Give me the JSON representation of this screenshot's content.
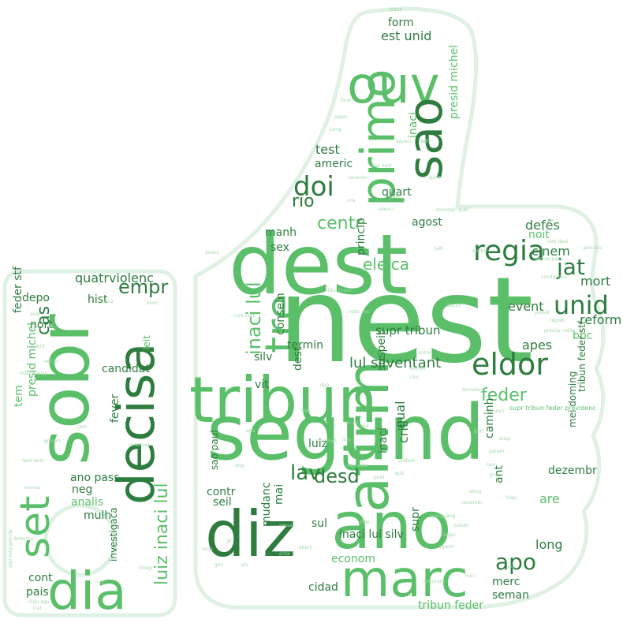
{
  "palette": {
    "outline": "#dff1e3",
    "dark": "#2e7d3f",
    "mid": "#5bbf6a",
    "light": "#a3d7a9",
    "pale": "#cfe8d3"
  },
  "words": [
    {
      "text": "nest",
      "tone": "mid"
    },
    {
      "text": "segund",
      "tone": "mid"
    },
    {
      "text": "dest",
      "tone": "mid"
    },
    {
      "text": "ano",
      "tone": "mid"
    },
    {
      "text": "diz",
      "tone": "dark"
    },
    {
      "text": "tribun",
      "tone": "mid"
    },
    {
      "text": "sobr",
      "tone": "mid"
    },
    {
      "text": "decisa",
      "tone": "dark"
    },
    {
      "text": "afirm",
      "tone": "mid"
    },
    {
      "text": "marc",
      "tone": "mid"
    },
    {
      "text": "primo",
      "tone": "mid"
    },
    {
      "text": "ouv",
      "tone": "mid"
    },
    {
      "text": "sao",
      "tone": "dark"
    },
    {
      "text": "tre",
      "tone": "mid"
    },
    {
      "text": "dia",
      "tone": "mid"
    },
    {
      "text": "set",
      "tone": "mid"
    },
    {
      "text": "eldor",
      "tone": "dark"
    },
    {
      "text": "regia",
      "tone": "dark"
    },
    {
      "text": "doi",
      "tone": "dark"
    },
    {
      "text": "unid",
      "tone": "dark"
    },
    {
      "text": "jat",
      "tone": "dark"
    },
    {
      "text": "lav",
      "tone": "dark"
    },
    {
      "text": "desd",
      "tone": "dark"
    },
    {
      "text": "apo",
      "tone": "dark"
    },
    {
      "text": "empr",
      "tone": "dark"
    },
    {
      "text": "inaci lul",
      "tone": "mid"
    },
    {
      "text": "luiz inaci lul",
      "tone": "mid"
    },
    {
      "text": "centr",
      "tone": "mid"
    },
    {
      "text": "rio",
      "tone": "dark"
    },
    {
      "text": "feder",
      "tone": "mid"
    },
    {
      "text": "cas",
      "tone": "dark"
    },
    {
      "text": "eleica",
      "tone": "mid"
    },
    {
      "text": "lul silventant",
      "tone": "dark"
    },
    {
      "text": "quatrviolenc",
      "tone": "dark"
    },
    {
      "text": "est unid",
      "tone": "dark"
    },
    {
      "text": "form",
      "tone": "dark"
    },
    {
      "text": "test",
      "tone": "dark"
    },
    {
      "text": "americ",
      "tone": "dark"
    },
    {
      "text": "quart",
      "tone": "dark"
    },
    {
      "text": "agost",
      "tone": "dark"
    },
    {
      "text": "defês",
      "tone": "dark"
    },
    {
      "text": "noit",
      "tone": "mid"
    },
    {
      "text": "cinem",
      "tone": "dark"
    },
    {
      "text": "mort",
      "tone": "dark"
    },
    {
      "text": "reform",
      "tone": "dark"
    },
    {
      "text": "event",
      "tone": "dark"
    },
    {
      "text": "apes",
      "tone": "dark"
    },
    {
      "text": "bbc",
      "tone": "mid"
    },
    {
      "text": "supr tribun",
      "tone": "dark"
    },
    {
      "text": "termin",
      "tone": "dark"
    },
    {
      "text": "silv",
      "tone": "dark"
    },
    {
      "text": "vit",
      "tone": "dark"
    },
    {
      "text": "dest",
      "tone": "dark"
    },
    {
      "text": "conseln",
      "tone": "dark"
    },
    {
      "text": "suspeit",
      "tone": "dark"
    },
    {
      "text": "crit",
      "tone": "dark"
    },
    {
      "text": "qual",
      "tone": "dark"
    },
    {
      "text": "luiz",
      "tone": "dark"
    },
    {
      "text": "inaci",
      "tone": "dark"
    },
    {
      "text": "caminh",
      "tone": "dark"
    },
    {
      "text": "dezembr",
      "tone": "dark"
    },
    {
      "text": "ant",
      "tone": "dark"
    },
    {
      "text": "are",
      "tone": "mid"
    },
    {
      "text": "long",
      "tone": "dark"
    },
    {
      "text": "merc",
      "tone": "dark"
    },
    {
      "text": "seman",
      "tone": "dark"
    },
    {
      "text": "tribun feder",
      "tone": "mid"
    },
    {
      "text": "cidad",
      "tone": "dark"
    },
    {
      "text": "econom",
      "tone": "mid"
    },
    {
      "text": "inaci lul silv",
      "tone": "dark"
    },
    {
      "text": "sul",
      "tone": "dark"
    },
    {
      "text": "supr",
      "tone": "dark"
    },
    {
      "text": "mudanc",
      "tone": "dark"
    },
    {
      "text": "seil",
      "tone": "dark"
    },
    {
      "text": "contr",
      "tone": "dark"
    },
    {
      "text": "mai",
      "tone": "dark"
    },
    {
      "text": "manh",
      "tone": "dark"
    },
    {
      "text": "sex",
      "tone": "dark"
    },
    {
      "text": "princip",
      "tone": "dark"
    },
    {
      "text": "inaci",
      "tone": "mid"
    },
    {
      "text": "presid michel",
      "tone": "mid"
    },
    {
      "text": "candidat",
      "tone": "dark"
    },
    {
      "text": "fever",
      "tone": "dark"
    },
    {
      "text": "ano pass",
      "tone": "dark"
    },
    {
      "text": "neg",
      "tone": "dark"
    },
    {
      "text": "analis",
      "tone": "mid"
    },
    {
      "text": "mulh",
      "tone": "dark"
    },
    {
      "text": "hist",
      "tone": "dark"
    },
    {
      "text": "depo",
      "tone": "dark"
    },
    {
      "text": "nort",
      "tone": "dark"
    },
    {
      "text": "feder stf",
      "tone": "dark"
    },
    {
      "text": "tem",
      "tone": "mid"
    },
    {
      "text": "presid michel",
      "tone": "mid"
    },
    {
      "text": "pais",
      "tone": "dark"
    },
    {
      "text": "cont",
      "tone": "dark"
    },
    {
      "text": "leit",
      "tone": "mid"
    },
    {
      "text": "investigaca",
      "tone": "dark"
    },
    {
      "text": "mei doming",
      "tone": "dark"
    },
    {
      "text": "tribun feder stf",
      "tone": "dark"
    },
    {
      "text": "sao paul",
      "tone": "dark"
    },
    {
      "text": "supr tribun feder previdenc",
      "tone": "mid"
    },
    {
      "text": "jan",
      "tone": "light"
    },
    {
      "text": "pass",
      "tone": "light"
    },
    {
      "text": "final",
      "tone": "light"
    },
    {
      "text": "espac",
      "tone": "light"
    },
    {
      "text": "camp",
      "tone": "light"
    },
    {
      "text": "especi",
      "tone": "light"
    },
    {
      "text": "defin",
      "tone": "light"
    },
    {
      "text": "diss nest",
      "tone": "light"
    },
    {
      "text": "caravan",
      "tone": "light"
    },
    {
      "text": "paul",
      "tone": "light"
    },
    {
      "text": "quint",
      "tone": "light"
    },
    {
      "text": "cris",
      "tone": "light"
    },
    {
      "text": "silenci",
      "tone": "light"
    },
    {
      "text": "ministeri publ",
      "tone": "light"
    },
    {
      "text": "vej",
      "tone": "light"
    },
    {
      "text": "eleitor",
      "tone": "light"
    },
    {
      "text": "julh",
      "tone": "light"
    },
    {
      "text": "noit dest",
      "tone": "light"
    },
    {
      "text": "seman pass",
      "tone": "light"
    },
    {
      "text": "process",
      "tone": "light"
    },
    {
      "text": "condenaca",
      "tone": "light"
    },
    {
      "text": "presid",
      "tone": "light"
    },
    {
      "text": "registr",
      "tone": "light"
    },
    {
      "text": "princip notic",
      "tone": "light"
    },
    {
      "text": "discut",
      "tone": "light"
    },
    {
      "text": "notic voc",
      "tone": "light"
    },
    {
      "text": "estre",
      "tone": "light"
    },
    {
      "text": "entrev",
      "tone": "light"
    },
    {
      "text": "cinc",
      "tone": "light"
    },
    {
      "text": "tecnolog",
      "tone": "light"
    },
    {
      "text": "anunci",
      "tone": "light"
    },
    {
      "text": "alegr",
      "tone": "light"
    },
    {
      "text": "garant",
      "tone": "light"
    },
    {
      "text": "hav",
      "tone": "light"
    },
    {
      "text": "grup",
      "tone": "light"
    },
    {
      "text": "cliqu",
      "tone": "light"
    },
    {
      "text": "ating",
      "tone": "light"
    },
    {
      "text": "novembr",
      "tone": "light"
    },
    {
      "text": "outubr",
      "tone": "light"
    },
    {
      "text": "segur",
      "tone": "light"
    },
    {
      "text": "agend",
      "tone": "light"
    },
    {
      "text": "reu",
      "tone": "light"
    },
    {
      "text": "seguranc",
      "tone": "light"
    },
    {
      "text": "inici",
      "tone": "light"
    },
    {
      "text": "pyongyang",
      "tone": "light"
    },
    {
      "text": "protest",
      "tone": "light"
    },
    {
      "text": "quit",
      "tone": "light"
    },
    {
      "text": "pont",
      "tone": "light"
    },
    {
      "text": "julg",
      "tone": "light"
    },
    {
      "text": "ped",
      "tone": "light"
    },
    {
      "text": "recurs",
      "tone": "light"
    },
    {
      "text": "ministeri",
      "tone": "light"
    },
    {
      "text": "sessa",
      "tone": "light"
    },
    {
      "text": "abert",
      "tone": "light"
    },
    {
      "text": "difer",
      "tone": "light"
    },
    {
      "text": "enta",
      "tone": "light"
    },
    {
      "text": "alv",
      "tone": "light"
    },
    {
      "text": "jb",
      "tone": "light"
    },
    {
      "text": "gov",
      "tone": "light"
    },
    {
      "text": "orig",
      "tone": "light"
    },
    {
      "text": "apa",
      "tone": "light"
    },
    {
      "text": "venezuel",
      "tone": "light"
    },
    {
      "text": "govern",
      "tone": "light"
    },
    {
      "text": "tard dest",
      "tone": "light"
    },
    {
      "text": "cam",
      "tone": "light"
    },
    {
      "text": "menos",
      "tone": "light"
    },
    {
      "text": "determin",
      "tone": "light"
    },
    {
      "text": "integr",
      "tone": "light"
    },
    {
      "text": "nov",
      "tone": "light"
    },
    {
      "text": "cliqu aqu",
      "tone": "light"
    },
    {
      "text": "trat",
      "tone": "light"
    },
    {
      "text": "abril",
      "tone": "light"
    },
    {
      "text": "region",
      "tone": "light"
    },
    {
      "text": "esta princip",
      "tone": "light"
    },
    {
      "text": "aca",
      "tone": "light"
    },
    {
      "text": "aval",
      "tone": "light"
    },
    {
      "text": "alem",
      "tone": "light"
    },
    {
      "text": "aqu esta princip",
      "tone": "light"
    },
    {
      "text": "core nort",
      "tone": "light"
    },
    {
      "text": "aqu esta",
      "tone": "light"
    },
    {
      "text": "bbc brasil",
      "tone": "light"
    },
    {
      "text": "avanc",
      "tone": "light"
    },
    {
      "text": "aqu",
      "tone": "light"
    },
    {
      "text": "dua",
      "tone": "light"
    },
    {
      "text": "reun",
      "tone": "light"
    },
    {
      "text": "busc",
      "tone": "light"
    }
  ]
}
